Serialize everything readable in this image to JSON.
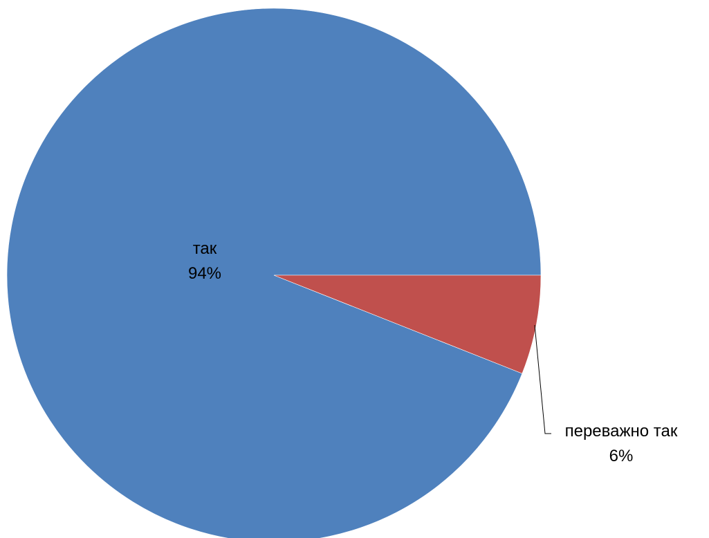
{
  "chart_data": {
    "type": "pie",
    "title": "",
    "slices": [
      {
        "label": "так",
        "value": 94,
        "percent_label": "94%",
        "color": "#4F81BD"
      },
      {
        "label": "переважно так",
        "value": 6,
        "percent_label": "6%",
        "color": "#C0504D"
      }
    ],
    "start_angle_deg": 0,
    "direction": "clockwise",
    "legend": "none",
    "data_labels": true
  }
}
